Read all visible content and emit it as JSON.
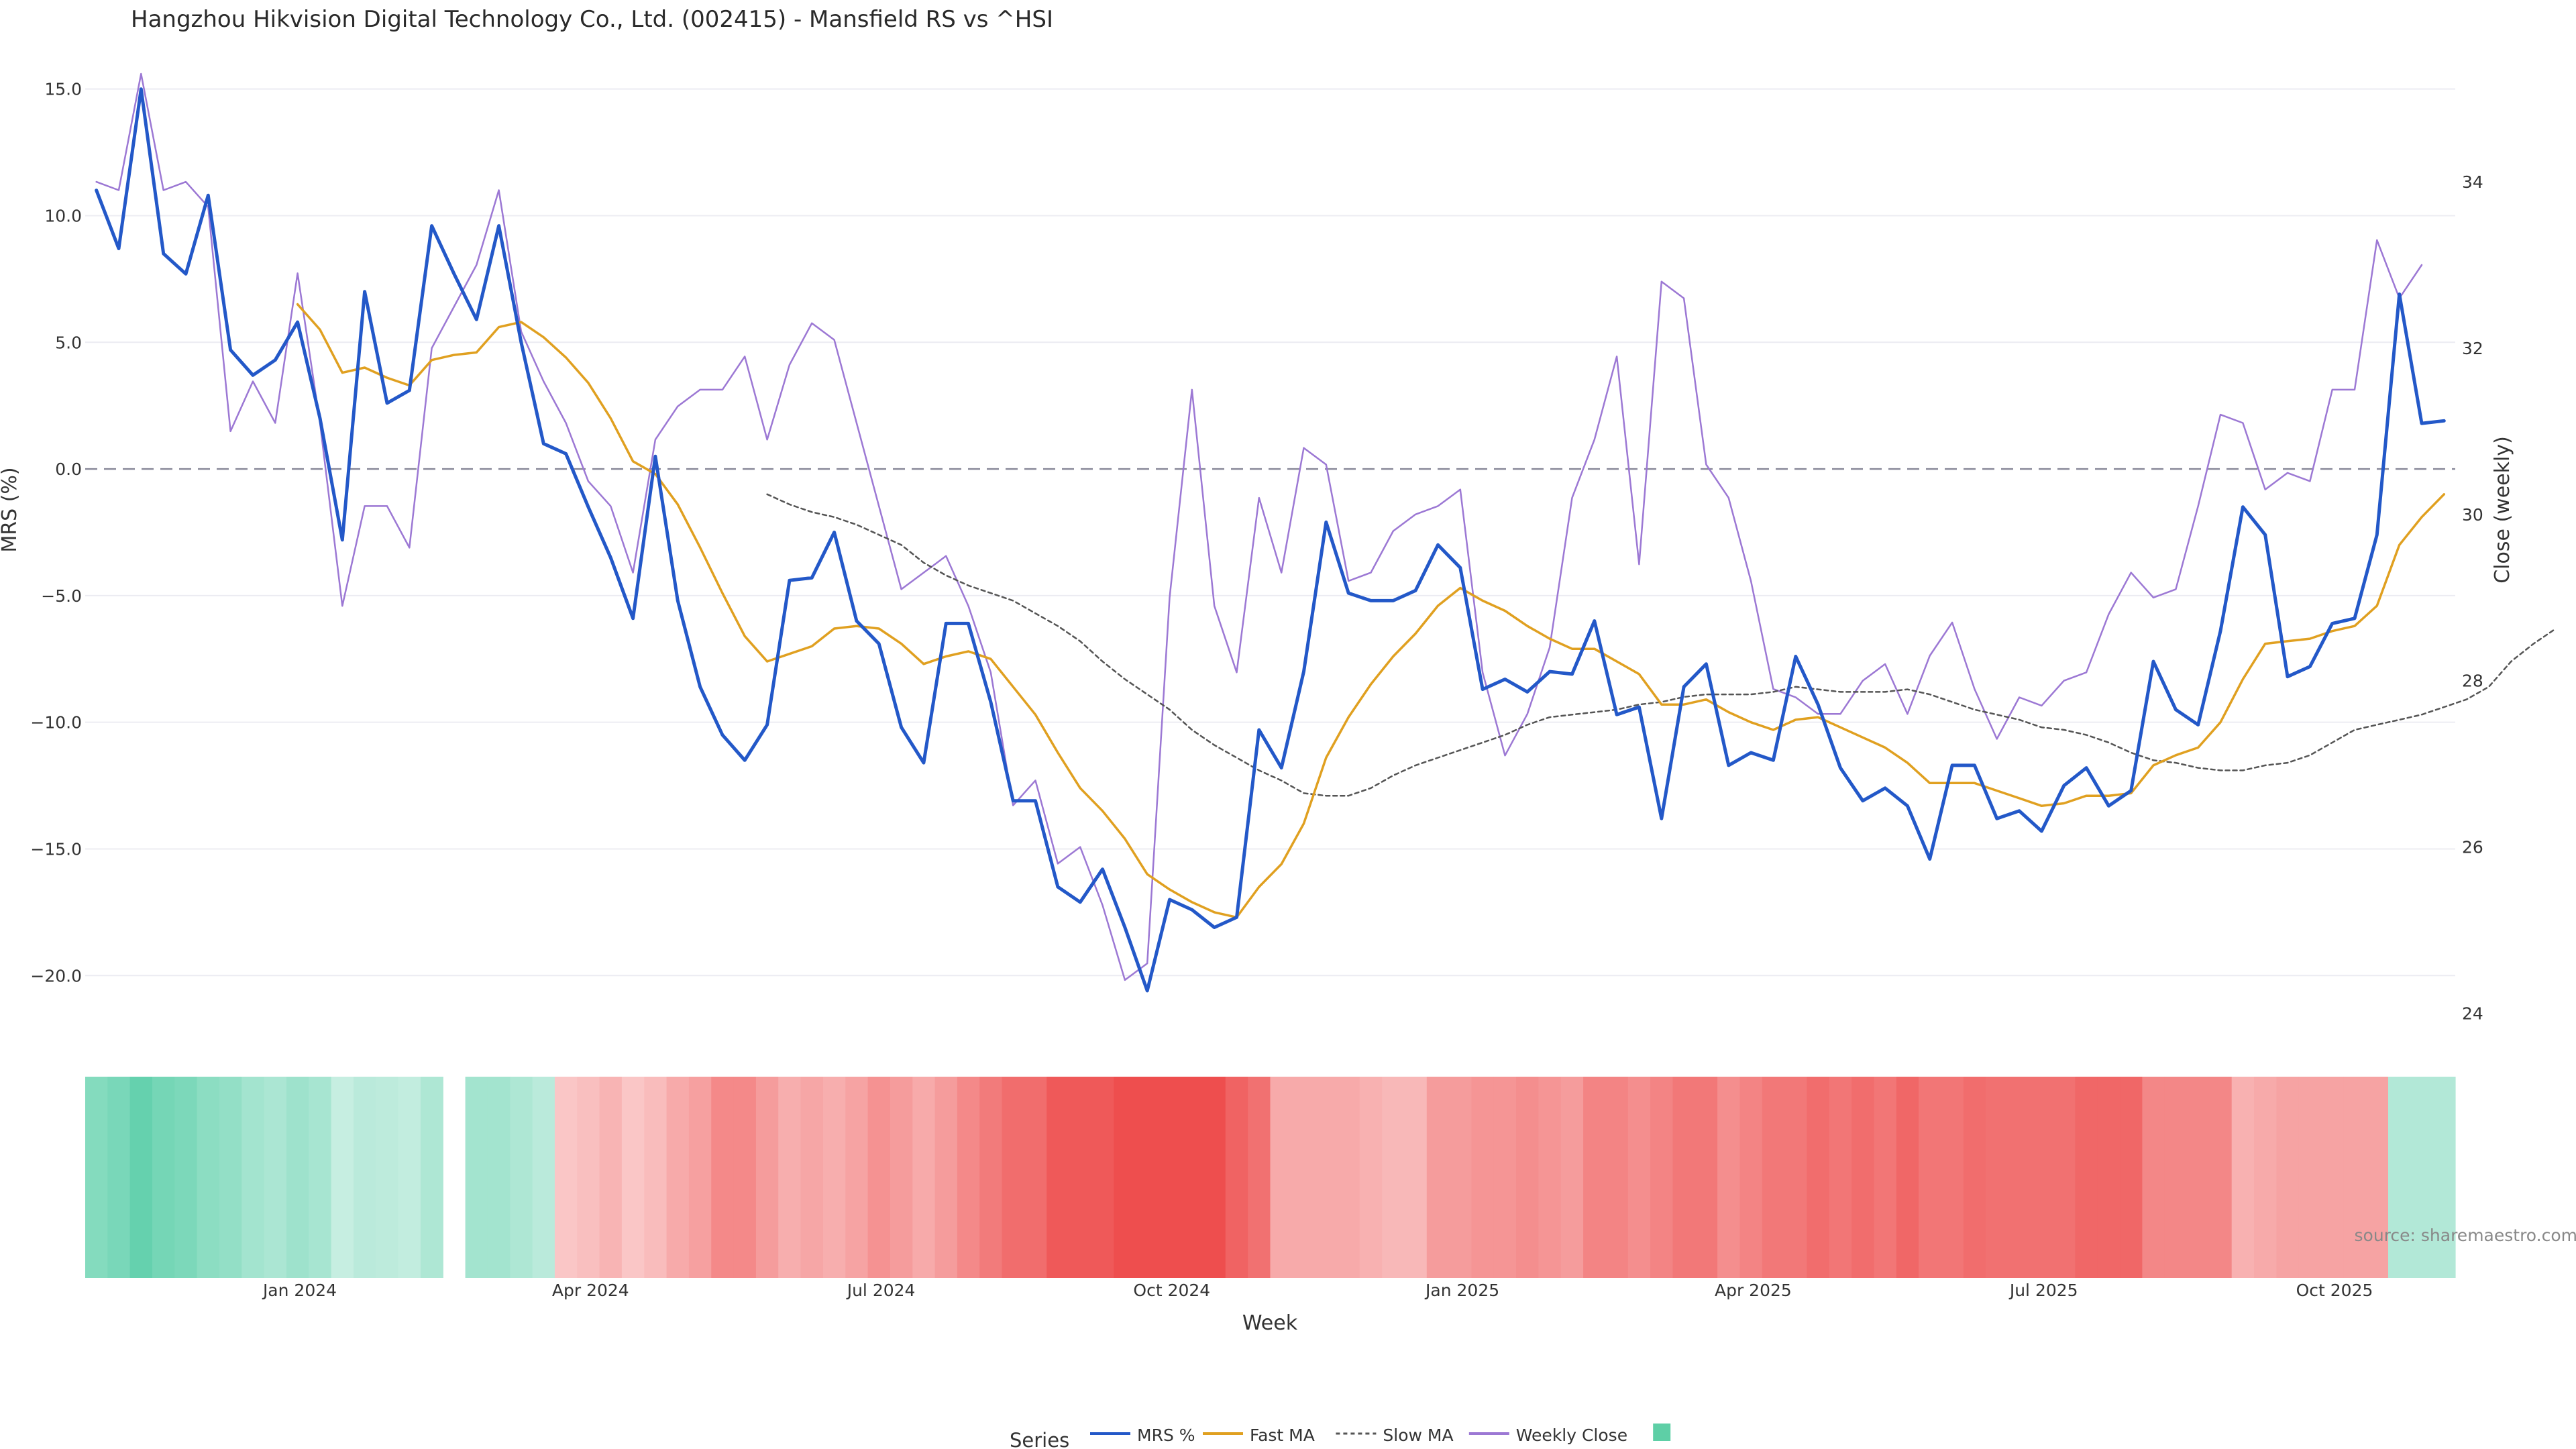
{
  "chart_data": {
    "type": "line",
    "title": "Hangzhou Hikvision Digital Technology Co., Ltd. (002415) - Mansfield RS vs ^HSI",
    "xlabel": "Week",
    "ylabel_left": "MRS (%)",
    "ylabel_right": "Close (weekly)",
    "source_text": "source: sharemaestro.com",
    "legend_title": "Series",
    "y_left_lim": [
      -22.8,
      15.6
    ],
    "y_left_ticks": [
      15,
      10,
      5,
      0,
      -5,
      -10,
      -15,
      -20
    ],
    "y_left_tick_labels": [
      "15.0",
      "10.0",
      "5.0",
      "0.0",
      "−5.0",
      "−10.0",
      "−15.0",
      "−20.0"
    ],
    "y_right_lim": [
      23.6,
      35.3
    ],
    "y_right_ticks": [
      34,
      32,
      30,
      28,
      26,
      24
    ],
    "y_right_tick_labels": [
      "34",
      "32",
      "30",
      "28",
      "26",
      "24"
    ],
    "x_tick_labels": [
      "Jan 2024",
      "Apr 2024",
      "Jul 2024",
      "Oct 2024",
      "Jan 2025",
      "Apr 2025",
      "Jul 2025",
      "Oct 2025"
    ],
    "x_tick_weeks": [
      9.6,
      22.6,
      35.6,
      48.6,
      61.6,
      74.6,
      87.6,
      100.6
    ],
    "weeks": 106,
    "gap_week": 16,
    "series": [
      {
        "name": "MRS %",
        "axis": "left",
        "color": "#2358c8",
        "values": [
          11.0,
          8.7,
          15.0,
          8.5,
          7.7,
          10.8,
          4.7,
          3.7,
          4.3,
          5.8,
          2.0,
          -2.8,
          7.0,
          2.6,
          3.1,
          9.6,
          7.7,
          5.9,
          9.6,
          5.0,
          1.0,
          0.6,
          -1.5,
          -3.5,
          -5.9,
          0.5,
          -5.2,
          -8.6,
          -10.5,
          -11.5,
          -10.1,
          -4.4,
          -4.3,
          -2.5,
          -6.0,
          -6.9,
          -10.2,
          -11.6,
          -6.1,
          -6.1,
          -9.2,
          -13.1,
          -13.1,
          -16.5,
          -17.1,
          -15.8,
          -18.1,
          -20.6,
          -17.0,
          -17.4,
          -18.1,
          -17.7,
          -10.3,
          -11.8,
          -8.0,
          -2.1,
          -4.9,
          -5.2,
          -5.2,
          -4.8,
          -3.0,
          -3.9,
          -8.7,
          -8.3,
          -8.8,
          -8.0,
          -8.1,
          -6.0,
          -9.7,
          -9.4,
          -13.8,
          -8.6,
          -7.7,
          -11.7,
          -11.2,
          -11.5,
          -7.4,
          -9.3,
          -11.8,
          -13.1,
          -12.6,
          -13.3,
          -15.4,
          -11.7,
          -11.7,
          -13.8,
          -13.5,
          -14.3,
          -12.5,
          -11.8,
          -13.3,
          -12.7,
          -7.6,
          -9.5,
          -10.1,
          -6.4,
          -1.5,
          -2.6,
          -8.2,
          -7.8,
          -6.1,
          -5.9,
          -2.6,
          6.9,
          1.8,
          1.9
        ]
      },
      {
        "name": "Fast MA",
        "axis": "left",
        "color": "#e0a020",
        "start": 9,
        "values": [
          6.5,
          5.5,
          3.8,
          4.0,
          3.6,
          3.3,
          4.3,
          4.5,
          4.6,
          5.6,
          5.8,
          5.2,
          4.4,
          3.4,
          2.0,
          0.3,
          -0.2,
          -1.4,
          -3.1,
          -4.9,
          -6.6,
          -7.6,
          -7.3,
          -7.0,
          -6.3,
          -6.2,
          -6.3,
          -6.9,
          -7.7,
          -7.4,
          -7.2,
          -7.5,
          -8.6,
          -9.7,
          -11.2,
          -12.6,
          -13.5,
          -14.6,
          -16.0,
          -16.6,
          -17.1,
          -17.5,
          -17.7,
          -16.5,
          -15.6,
          -14.0,
          -11.4,
          -9.8,
          -8.5,
          -7.4,
          -6.5,
          -5.4,
          -4.7,
          -5.2,
          -5.6,
          -6.2,
          -6.7,
          -7.1,
          -7.1,
          -7.6,
          -8.1,
          -9.3,
          -9.3,
          -9.1,
          -9.6,
          -10.0,
          -10.3,
          -9.9,
          -9.8,
          -10.2,
          -10.6,
          -11.0,
          -11.6,
          -12.4,
          -12.4,
          -12.4,
          -12.7,
          -13.0,
          -13.3,
          -13.2,
          -12.9,
          -12.9,
          -12.8,
          -11.7,
          -11.3,
          -11.0,
          -10.0,
          -8.3,
          -6.9,
          -6.8,
          -6.7,
          -6.4,
          -6.2,
          -5.4,
          -3.0,
          -1.9,
          -1.0
        ]
      },
      {
        "name": "Slow MA",
        "axis": "left",
        "color": "#555555",
        "dash": "6,5",
        "start": 30,
        "values": [
          -1.0,
          -1.4,
          -1.7,
          -1.9,
          -2.2,
          -2.6,
          -3.0,
          -3.7,
          -4.2,
          -4.6,
          -4.9,
          -5.2,
          -5.7,
          -6.2,
          -6.8,
          -7.6,
          -8.3,
          -8.9,
          -9.5,
          -10.3,
          -10.9,
          -11.4,
          -11.9,
          -12.3,
          -12.8,
          -12.9,
          -12.9,
          -12.6,
          -12.1,
          -11.7,
          -11.4,
          -11.1,
          -10.8,
          -10.5,
          -10.1,
          -9.8,
          -9.7,
          -9.6,
          -9.5,
          -9.3,
          -9.2,
          -9.0,
          -8.9,
          -8.9,
          -8.9,
          -8.8,
          -8.6,
          -8.7,
          -8.8,
          -8.8,
          -8.8,
          -8.7,
          -8.9,
          -9.2,
          -9.5,
          -9.7,
          -9.9,
          -10.2,
          -10.3,
          -10.5,
          -10.8,
          -11.2,
          -11.5,
          -11.6,
          -11.8,
          -11.9,
          -11.9,
          -11.7,
          -11.6,
          -11.3,
          -10.8,
          -10.3,
          -10.1,
          -9.9,
          -9.7,
          -9.4,
          -9.1,
          -8.6,
          -7.6,
          -6.9,
          -6.3
        ]
      },
      {
        "name": "Weekly Close",
        "axis": "right",
        "color": "#9c78d4",
        "values": [
          34.0,
          33.9,
          35.3,
          33.9,
          34.0,
          33.7,
          31.0,
          31.6,
          31.1,
          32.9,
          31.1,
          28.9,
          30.1,
          30.1,
          29.6,
          32.0,
          32.5,
          33.0,
          33.9,
          32.2,
          31.6,
          31.1,
          30.4,
          30.1,
          29.3,
          30.9,
          31.3,
          31.5,
          31.5,
          31.9,
          30.9,
          31.8,
          32.3,
          32.1,
          31.1,
          30.1,
          29.1,
          29.3,
          29.5,
          28.9,
          28.1,
          26.5,
          26.8,
          25.8,
          26.0,
          25.3,
          24.4,
          24.6,
          29.0,
          31.5,
          28.9,
          28.1,
          30.2,
          29.3,
          30.8,
          30.6,
          29.2,
          29.3,
          29.8,
          30.0,
          30.1,
          30.3,
          28.1,
          27.1,
          27.6,
          28.4,
          30.2,
          30.9,
          31.9,
          29.4,
          32.8,
          32.6,
          30.6,
          30.2,
          29.2,
          27.9,
          27.8,
          27.6,
          27.6,
          28.0,
          28.2,
          27.6,
          28.3,
          28.7,
          27.9,
          27.3,
          27.8,
          27.7,
          28.0,
          28.1,
          28.8,
          29.3,
          29.0,
          29.1,
          30.1,
          31.2,
          31.1,
          30.3,
          30.5,
          30.4,
          31.5,
          31.5,
          33.3,
          32.6,
          33.0
        ]
      }
    ],
    "heat_strip": [
      0.55,
      0.62,
      0.75,
      0.65,
      0.6,
      0.5,
      0.45,
      0.35,
      0.3,
      0.38,
      0.32,
      0.12,
      0.2,
      0.18,
      0.15,
      0.28,
      null,
      0.35,
      0.35,
      0.28,
      0.2,
      -0.15,
      -0.2,
      -0.28,
      -0.15,
      -0.22,
      -0.35,
      -0.42,
      -0.58,
      -0.58,
      -0.45,
      -0.32,
      -0.38,
      -0.32,
      -0.4,
      -0.52,
      -0.45,
      -0.35,
      -0.45,
      -0.58,
      -0.68,
      -0.78,
      -0.78,
      -0.92,
      -0.92,
      -0.92,
      -1.0,
      -1.0,
      -1.0,
      -1.0,
      -1.0,
      -0.85,
      -0.75,
      -0.35,
      -0.35,
      -0.35,
      -0.35,
      -0.3,
      -0.25,
      -0.25,
      -0.45,
      -0.45,
      -0.5,
      -0.5,
      -0.55,
      -0.5,
      -0.45,
      -0.62,
      -0.62,
      -0.55,
      -0.62,
      -0.7,
      -0.7,
      -0.55,
      -0.62,
      -0.7,
      -0.7,
      -0.78,
      -0.72,
      -0.78,
      -0.72,
      -0.82,
      -0.72,
      -0.72,
      -0.78,
      -0.75,
      -0.75,
      -0.75,
      -0.75,
      -0.82,
      -0.82,
      -0.82,
      -0.6,
      -0.6,
      -0.6,
      -0.6,
      -0.3,
      -0.35,
      -0.4,
      -0.4,
      -0.4,
      -0.4,
      -0.4,
      0.25,
      0.25,
      0.25
    ],
    "heat_colors": {
      "positive": "#3fc69a",
      "negative": "#ee4e4e"
    },
    "legend": [
      {
        "label": "MRS %",
        "kind": "line",
        "color": "#2358c8"
      },
      {
        "label": "Fast MA",
        "kind": "line",
        "color": "#e0a020"
      },
      {
        "label": "Slow MA",
        "kind": "dash",
        "color": "#555555"
      },
      {
        "label": "Weekly Close",
        "kind": "line",
        "color": "#9c78d4"
      },
      {
        "label": "",
        "kind": "swatch",
        "color": "#5ecfa6"
      }
    ]
  }
}
